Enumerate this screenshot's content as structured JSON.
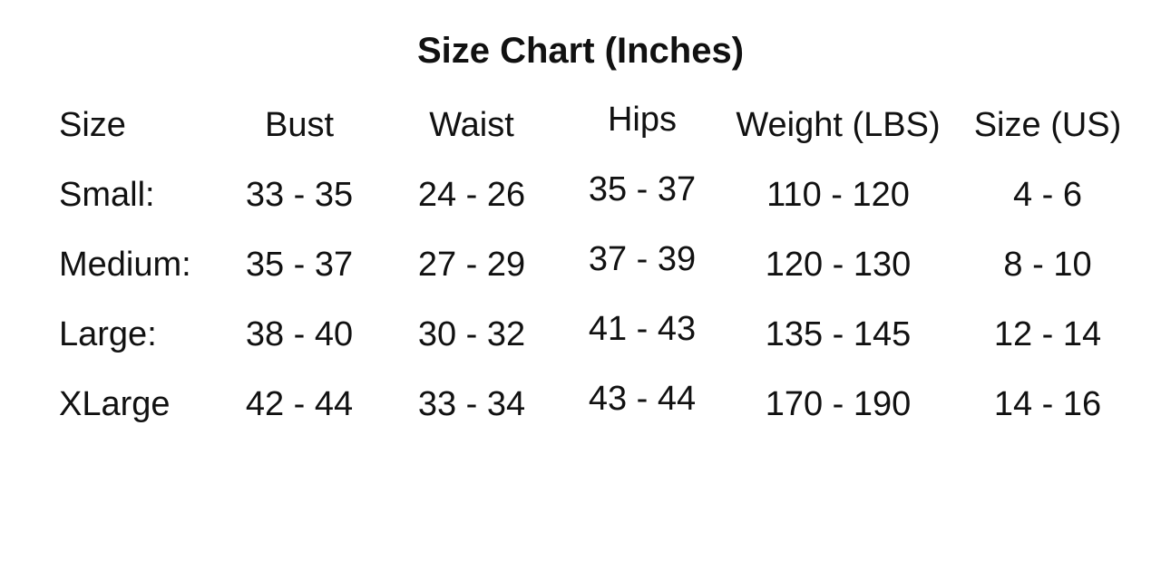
{
  "title": "Size Chart (Inches)",
  "headers": [
    "Size",
    "Bust",
    "Waist",
    "Hips",
    "Weight (LBS)",
    "Size (US)"
  ],
  "rows": [
    [
      "Small:",
      "33 - 35",
      "24 - 26",
      "35 - 37",
      "110 - 120",
      "4 - 6"
    ],
    [
      "Medium:",
      "35 - 37",
      "27 - 29",
      "37 - 39",
      "120 - 130",
      "8 - 10"
    ],
    [
      "Large:",
      "38 - 40",
      "30 - 32",
      "41 - 43",
      "135 - 145",
      "12 - 14"
    ],
    [
      "XLarge",
      "42 - 44",
      "33 - 34",
      "43 - 44",
      "170 - 190",
      "14 - 16"
    ]
  ]
}
